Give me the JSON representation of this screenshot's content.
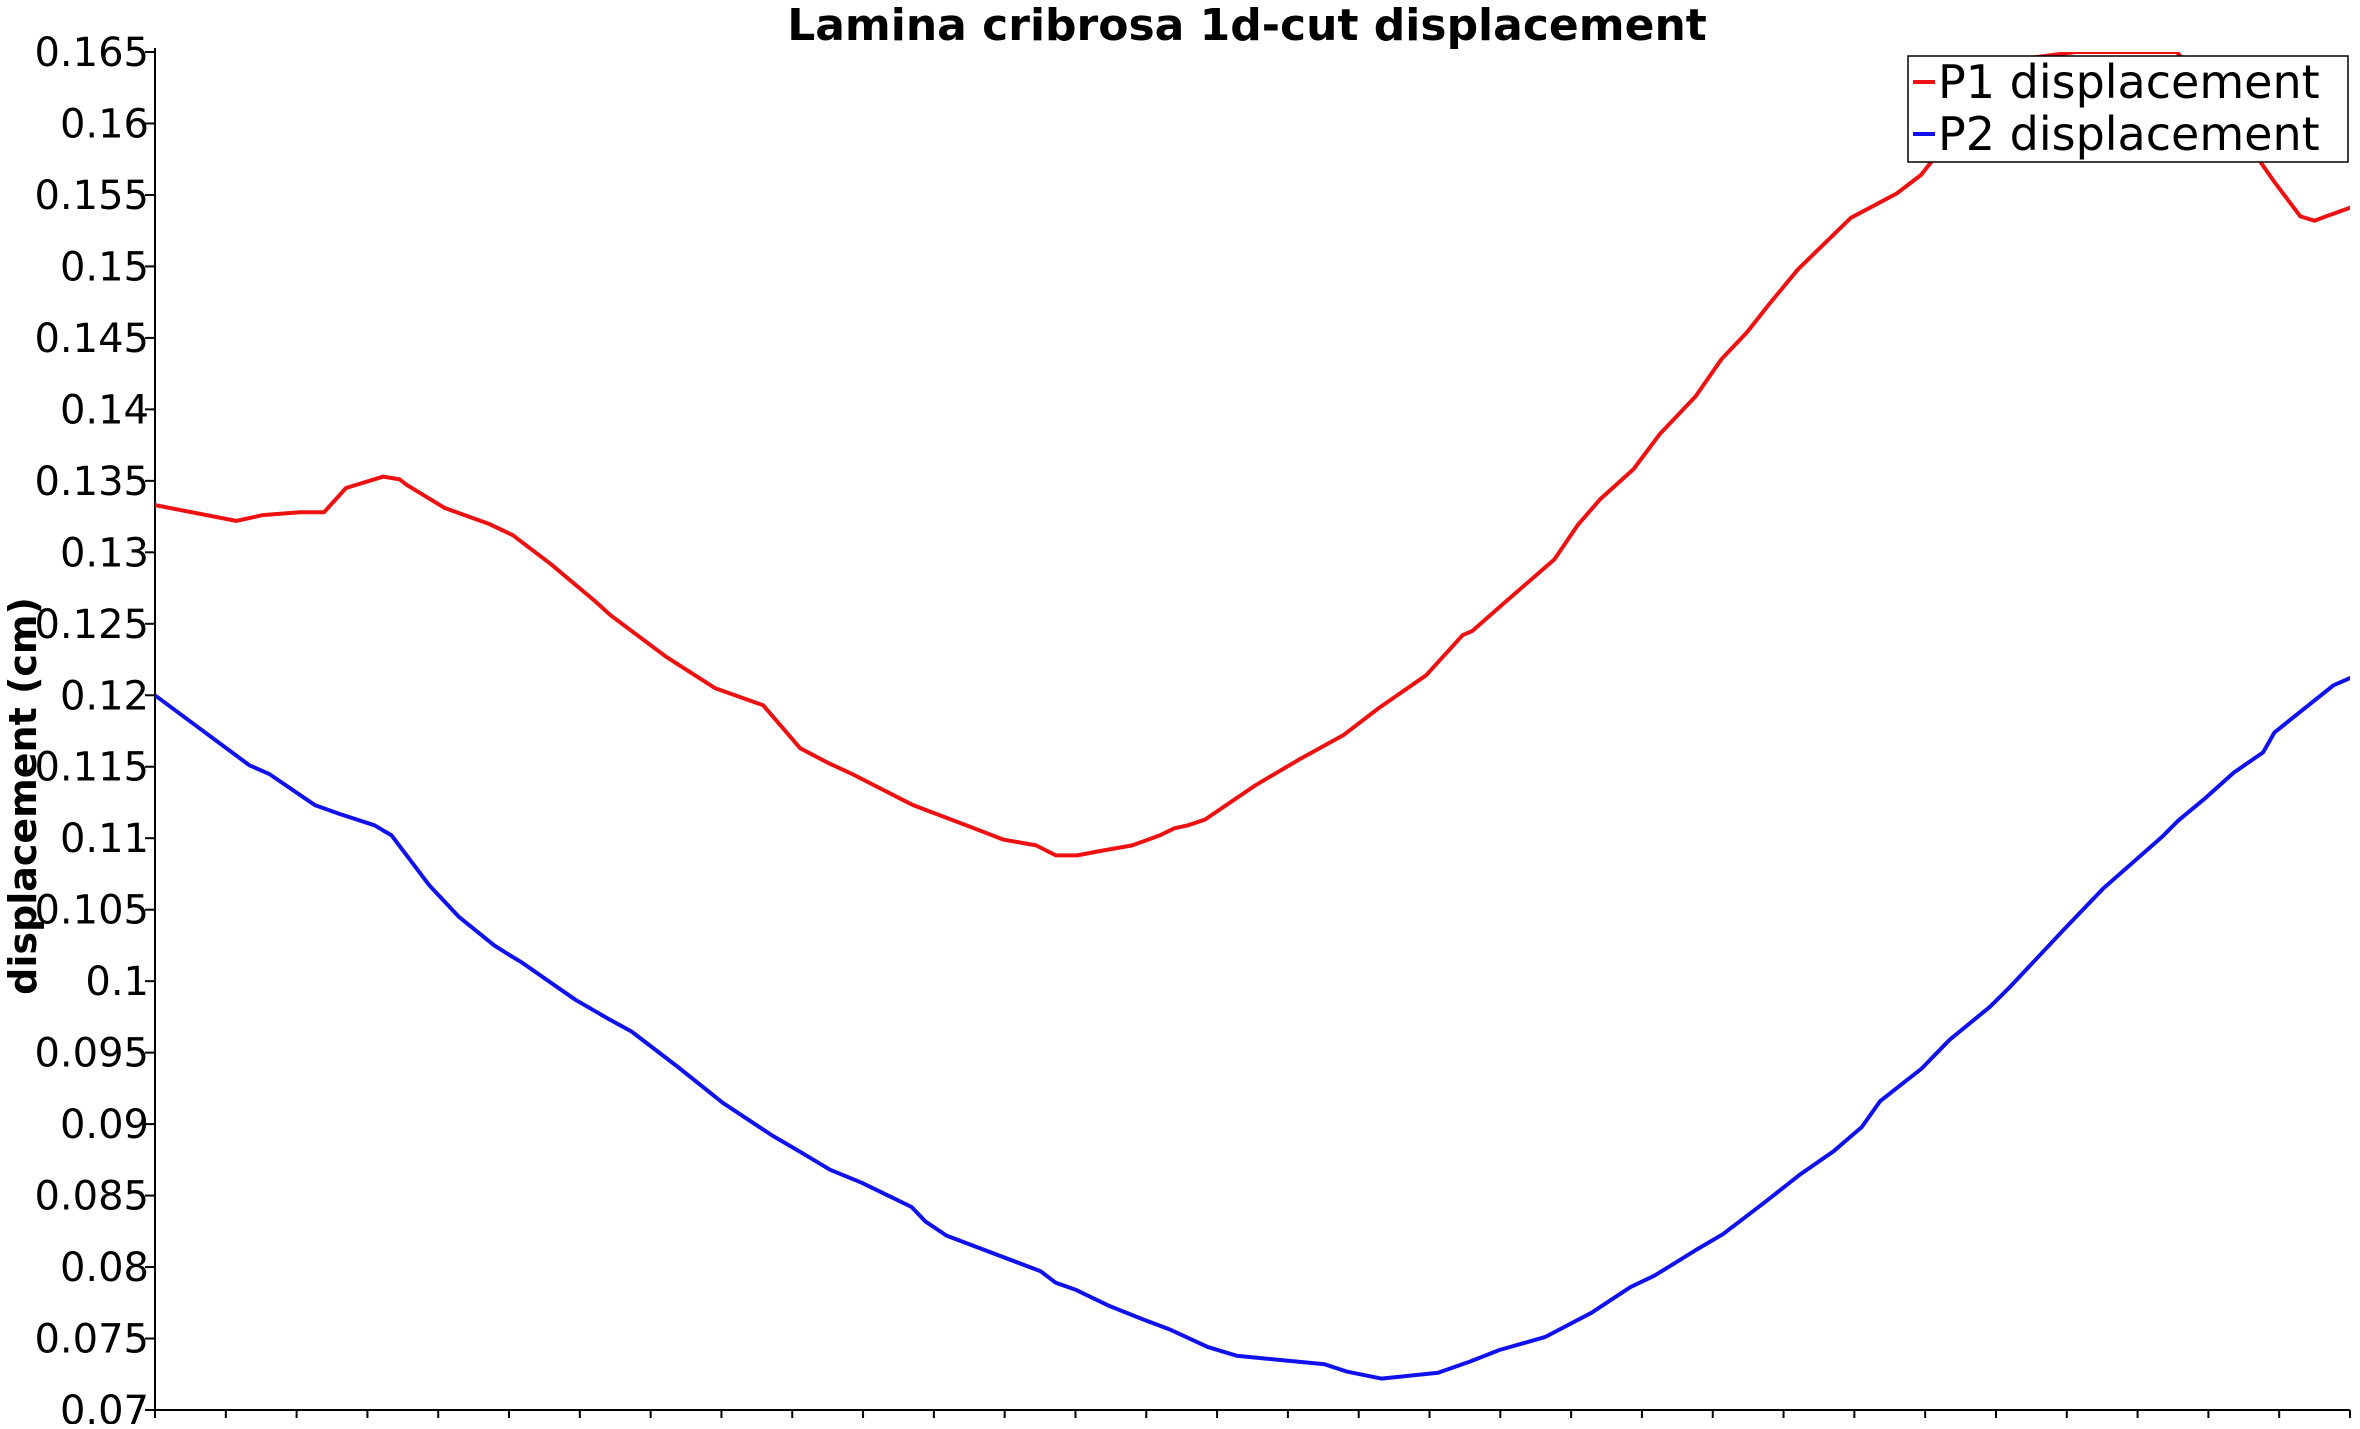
{
  "chart_data": {
    "type": "line",
    "title": "Lamina cribrosa 1d-cut displacement",
    "xlabel": "",
    "ylabel": "displacement (cm)",
    "ylim": [
      0.07,
      0.165
    ],
    "xlim": [
      0,
      1
    ],
    "yticks": [
      "0.07",
      "0.075",
      "0.08",
      "0.085",
      "0.09",
      "0.095",
      "0.1",
      "0.105",
      "0.11",
      "0.115",
      "0.12",
      "0.125",
      "0.13",
      "0.135",
      "0.14",
      "0.145",
      "0.15",
      "0.155",
      "0.16",
      "0.165"
    ],
    "x_minor_ticks": 31,
    "grid": false,
    "legend_position": "top-right",
    "series": [
      {
        "name": "P1 displacement",
        "color": "#ee1111",
        "x": [
          0,
          0.037,
          0.049,
          0.066,
          0.077,
          0.087,
          0.104,
          0.1115,
          0.1148,
          0.132,
          0.152,
          0.163,
          0.1802,
          0.2003,
          0.2075,
          0.2154,
          0.2328,
          0.2551,
          0.2771,
          0.2939,
          0.3062,
          0.3175,
          0.3455,
          0.3731,
          0.3865,
          0.4014,
          0.4104,
          0.4201,
          0.4303,
          0.4452,
          0.4577,
          0.4645,
          0.4706,
          0.4783,
          0.5013,
          0.5223,
          0.5413,
          0.5575,
          0.5791,
          0.5957,
          0.6002,
          0.6135,
          0.6375,
          0.6481,
          0.6583,
          0.6735,
          0.6857,
          0.7018,
          0.7136,
          0.7253,
          0.7351,
          0.7485,
          0.7726,
          0.7935,
          0.8046,
          0.8179,
          0.8366,
          0.8476,
          0.8551,
          0.875,
          0.9022,
          0.9211,
          0.9521,
          0.9597,
          0.9656,
          0.9774,
          0.9838,
          0.9891,
          1
        ],
        "y": [
          0.1333,
          0.1322,
          0.1326,
          0.1328,
          0.1328,
          0.1345,
          0.1353,
          0.1351,
          0.1347,
          0.1331,
          0.132,
          0.1312,
          0.1292,
          0.1266,
          0.1256,
          0.1247,
          0.1227,
          0.1205,
          0.1193,
          0.1163,
          0.1153,
          0.1145,
          0.1123,
          0.1107,
          0.1099,
          0.1095,
          0.1088,
          0.1088,
          0.1091,
          0.1095,
          0.1102,
          0.1107,
          0.1109,
          0.1113,
          0.1137,
          0.1156,
          0.1172,
          0.1191,
          0.1214,
          0.1242,
          0.1245,
          0.1263,
          0.1295,
          0.1319,
          0.1337,
          0.1358,
          0.1383,
          0.1409,
          0.1435,
          0.1454,
          0.1473,
          0.1498,
          0.1534,
          0.1551,
          0.1564,
          0.159,
          0.1621,
          0.1636,
          0.1646,
          0.165,
          0.165,
          0.165,
          0.1592,
          0.1572,
          0.1559,
          0.1535,
          0.1532,
          0.1535,
          0.1541
        ]
      },
      {
        "name": "P2 displacement",
        "color": "#1111ee",
        "x": [
          0,
          0.043,
          0.052,
          0.073,
          0.084,
          0.1,
          0.1078,
          0.125,
          0.1384,
          0.1546,
          0.1597,
          0.1672,
          0.1915,
          0.2073,
          0.2169,
          0.2382,
          0.2586,
          0.2812,
          0.2946,
          0.3076,
          0.3219,
          0.3447,
          0.3509,
          0.3606,
          0.4035,
          0.4104,
          0.4196,
          0.4344,
          0.4507,
          0.4628,
          0.4797,
          0.4927,
          0.5127,
          0.5329,
          0.5427,
          0.5587,
          0.5845,
          0.5993,
          0.6125,
          0.6332,
          0.6544,
          0.6722,
          0.6832,
          0.7021,
          0.7143,
          0.7331,
          0.7497,
          0.7647,
          0.7776,
          0.7859,
          0.8049,
          0.8176,
          0.8359,
          0.8451,
          0.8702,
          0.8877,
          0.9144,
          0.9215,
          0.9333,
          0.9471,
          0.9604,
          0.9656,
          0.9827,
          0.9925,
          1
        ],
        "y": [
          0.12,
          0.1151,
          0.1145,
          0.1123,
          0.1117,
          0.1109,
          0.1102,
          0.1067,
          0.1045,
          0.1025,
          0.102,
          0.1013,
          0.0987,
          0.0973,
          0.0965,
          0.094,
          0.0915,
          0.0892,
          0.088,
          0.0868,
          0.0859,
          0.0842,
          0.0832,
          0.0822,
          0.0797,
          0.0789,
          0.0784,
          0.0773,
          0.0763,
          0.0756,
          0.0744,
          0.0738,
          0.0735,
          0.0732,
          0.0727,
          0.0722,
          0.0726,
          0.0734,
          0.0742,
          0.0751,
          0.0768,
          0.0786,
          0.0794,
          0.0812,
          0.0823,
          0.0845,
          0.0865,
          0.0881,
          0.0898,
          0.0916,
          0.0939,
          0.0959,
          0.0982,
          0.0996,
          0.1037,
          0.1065,
          0.1101,
          0.1112,
          0.1127,
          0.1146,
          0.116,
          0.1174,
          0.1195,
          0.1207,
          0.1212
        ]
      }
    ]
  }
}
